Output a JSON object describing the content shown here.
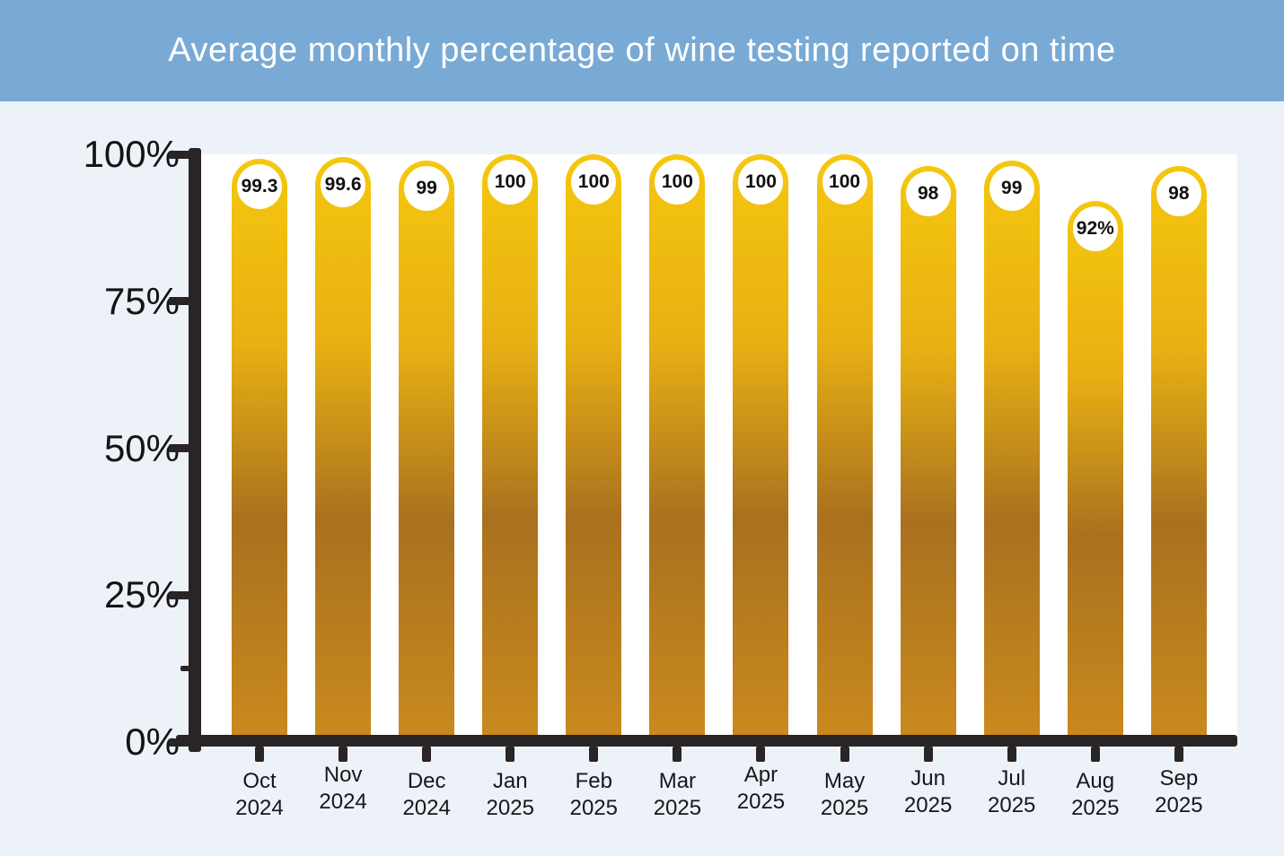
{
  "header": {
    "title": "Average monthly percentage of wine testing reported on time"
  },
  "chart_data": {
    "type": "bar",
    "title": "Average monthly percentage of wine testing reported on time",
    "categories": [
      "Oct 2024",
      "Nov 2024",
      "Dec 2024",
      "Jan 2025",
      "Feb 2025",
      "Mar 2025",
      "Apr 2025",
      "May 2025",
      "Jun 2025",
      "Jul 2025",
      "Aug 2025",
      "Sep 2025"
    ],
    "values": [
      99.3,
      99.6,
      99,
      100,
      100,
      100,
      100,
      100,
      98,
      99,
      92,
      98
    ],
    "value_labels": [
      "99.3",
      "99.6",
      "99",
      "100",
      "100",
      "100",
      "100",
      "100",
      "98",
      "99",
      "92%",
      "98"
    ],
    "xlabel": "",
    "ylabel": "",
    "ylim": [
      0,
      100
    ],
    "y_ticks": [
      "100%",
      "75%",
      "50%",
      "25%",
      "0%"
    ],
    "grid": false,
    "legend": false,
    "colors": {
      "header_bg": "#79aad5",
      "page_bg": "#edf1f8",
      "plot_bg": "#ffffff",
      "axis": "#292425",
      "bar_gradient_top": "#f5c70e",
      "bar_gradient_upper": "#e8b013",
      "bar_gradient_mid": "#a9711f",
      "bar_gradient_bottom": "#ca8a1e",
      "badge_bg": "#ffffff",
      "value_text": "#111111",
      "title_text": "#ffffff",
      "tick_label_text": "#141414"
    }
  }
}
